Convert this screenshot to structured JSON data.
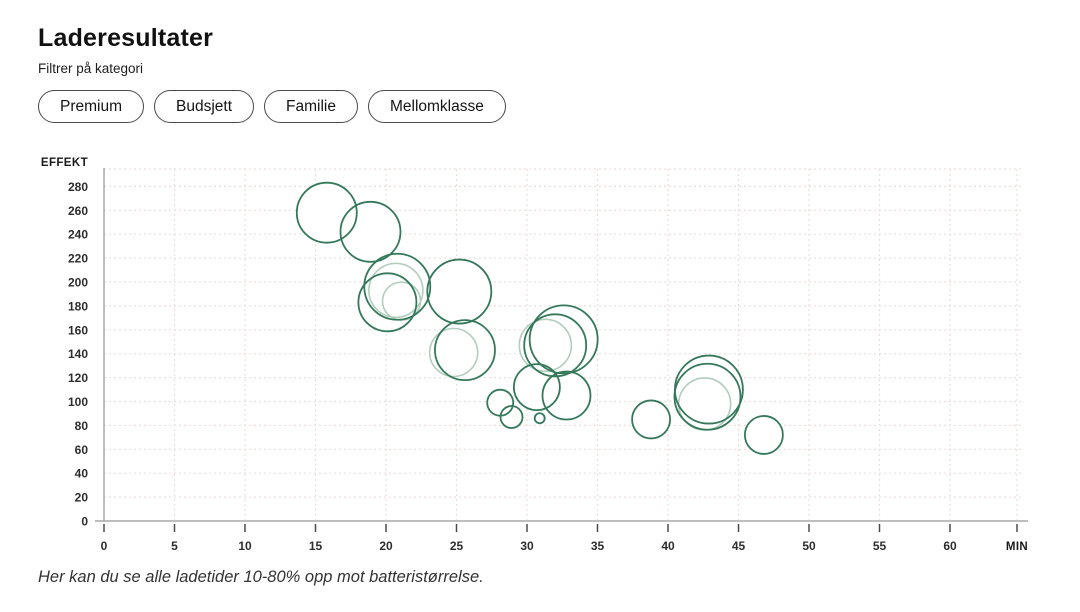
{
  "header": {
    "title": "Laderesultater",
    "subtitle": "Filtrer på kategori"
  },
  "filters": [
    {
      "label": "Premium"
    },
    {
      "label": "Budsjett"
    },
    {
      "label": "Familie"
    },
    {
      "label": "Mellomklasse"
    }
  ],
  "caption": "Her kan du se alle ladetider 10-80% opp mot batteristørrelse.",
  "colors": {
    "bubble_dark": "#35795b",
    "bubble_light": "#b0cdbd",
    "bubble_fill": "#ffffff",
    "grid": "#ecdedd",
    "axis": "#a9a9a9",
    "tick_mark": "#4a4a4a",
    "tick_text": "#2d2d2d"
  },
  "chart_data": {
    "type": "scatter",
    "title": "Laderesultater",
    "xlabel": "MIN",
    "ylabel": "EFFEKT",
    "x_axis": {
      "unit_label": "MIN",
      "min": 0,
      "max": 60,
      "tick_step": 5
    },
    "y_axis": {
      "unit_label": "EFFEKT",
      "min": 0,
      "max": 280,
      "tick_step": 20
    },
    "grid": true,
    "legend": false,
    "bubbles": [
      {
        "min": 15.8,
        "effekt": 258,
        "r": 30,
        "shade": "dark"
      },
      {
        "min": 18.9,
        "effekt": 242,
        "r": 30,
        "shade": "dark"
      },
      {
        "min": 20.8,
        "effekt": 196,
        "r": 33,
        "shade": "dark"
      },
      {
        "min": 20.1,
        "effekt": 183,
        "r": 29,
        "shade": "dark"
      },
      {
        "min": 20.7,
        "effekt": 193,
        "r": 27,
        "shade": "light"
      },
      {
        "min": 21.1,
        "effekt": 184,
        "r": 19,
        "shade": "light"
      },
      {
        "min": 25.2,
        "effekt": 192,
        "r": 32,
        "shade": "dark"
      },
      {
        "min": 25.6,
        "effekt": 143,
        "r": 30,
        "shade": "dark"
      },
      {
        "min": 24.8,
        "effekt": 141,
        "r": 24,
        "shade": "light"
      },
      {
        "min": 32.6,
        "effekt": 152,
        "r": 34,
        "shade": "dark"
      },
      {
        "min": 32.0,
        "effekt": 147,
        "r": 31,
        "shade": "dark"
      },
      {
        "min": 31.3,
        "effekt": 147,
        "r": 26,
        "shade": "light"
      },
      {
        "min": 30.7,
        "effekt": 112,
        "r": 23,
        "shade": "dark"
      },
      {
        "min": 32.8,
        "effekt": 105,
        "r": 24,
        "shade": "dark"
      },
      {
        "min": 28.1,
        "effekt": 99,
        "r": 13,
        "shade": "dark"
      },
      {
        "min": 28.9,
        "effekt": 87,
        "r": 11,
        "shade": "dark"
      },
      {
        "min": 30.9,
        "effekt": 86,
        "r": 5,
        "shade": "dark"
      },
      {
        "min": 38.8,
        "effekt": 85,
        "r": 19,
        "shade": "dark"
      },
      {
        "min": 42.9,
        "effekt": 110,
        "r": 34,
        "shade": "dark"
      },
      {
        "min": 42.8,
        "effekt": 104,
        "r": 33,
        "shade": "dark"
      },
      {
        "min": 42.6,
        "effekt": 98,
        "r": 26,
        "shade": "light"
      },
      {
        "min": 46.8,
        "effekt": 72,
        "r": 19,
        "shade": "dark"
      }
    ]
  }
}
